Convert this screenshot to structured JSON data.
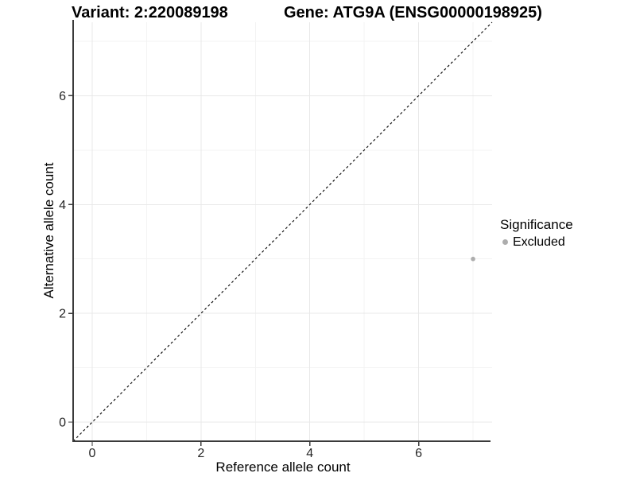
{
  "chart_data": {
    "type": "scatter",
    "titles": {
      "left": "Variant: 2:220089198",
      "right": "Gene: ATG9A (ENSG00000198925)"
    },
    "xlabel": "Reference allele count",
    "ylabel": "Alternative allele count",
    "xlim": [
      -0.35,
      7.35
    ],
    "ylim": [
      -0.35,
      7.35
    ],
    "x_major_ticks": [
      0,
      2,
      4,
      6
    ],
    "y_major_ticks": [
      0,
      2,
      4,
      6
    ],
    "x_minor_gridlines": [
      1,
      3,
      5,
      7
    ],
    "y_minor_gridlines": [
      1,
      3,
      5,
      7
    ],
    "grid": "major and minor gridlines, light gray on white panel",
    "series": [
      {
        "name": "Excluded",
        "color": "#adadad",
        "points": [
          {
            "x": 7,
            "y": 3
          }
        ]
      }
    ],
    "reference_line": {
      "label": "identity y = x",
      "x1": -0.35,
      "y1": -0.35,
      "x2": 7.35,
      "y2": 7.35,
      "style": "dashed",
      "color": "#000000"
    },
    "legend": {
      "title": "Significance",
      "position": "right",
      "items": [
        {
          "label": "Excluded",
          "marker": "circle",
          "color": "#adadad"
        }
      ]
    }
  },
  "colors": {
    "background": "#ffffff",
    "grid_major": "#e8e8e8",
    "grid_minor": "#f3f3f3",
    "axis_line": "#3a3a3a",
    "tick_label": "#262626",
    "text": "#000000",
    "point": "#adadad"
  }
}
